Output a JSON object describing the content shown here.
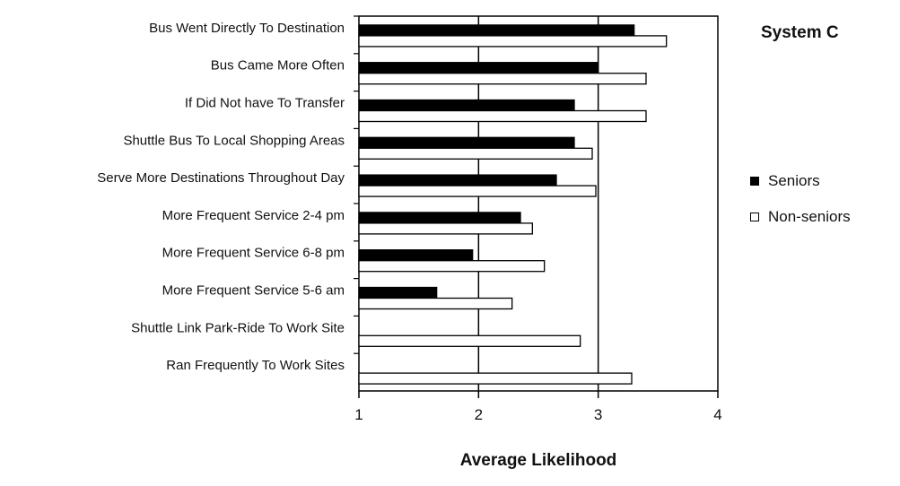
{
  "chart_data": {
    "type": "bar",
    "orientation": "horizontal",
    "title": "System C",
    "xlabel": "Average Likelihood",
    "ylabel": "",
    "xlim": [
      1,
      4
    ],
    "xticks": [
      "1",
      "2",
      "3",
      "4"
    ],
    "grid": "vertical major gridlines",
    "legend_position": "right",
    "categories": [
      "Bus Went Directly To Destination",
      "Bus Came More Often",
      "If Did Not have To Transfer",
      "Shuttle Bus To Local Shopping Areas",
      "Serve More Destinations Throughout Day",
      "More Frequent Service 2-4 pm",
      "More Frequent Service 6-8 pm",
      "More Frequent Service 5-6 am",
      "Shuttle Link Park-Ride To Work Site",
      "Ran Frequently To Work Sites"
    ],
    "series": [
      {
        "name": "Seniors",
        "color": "#000000",
        "values": [
          3.3,
          3.0,
          2.8,
          2.8,
          2.65,
          2.35,
          1.95,
          1.65,
          null,
          null
        ]
      },
      {
        "name": "Non-seniors",
        "color": "#ffffff",
        "values": [
          3.57,
          3.4,
          3.4,
          2.95,
          2.98,
          2.45,
          2.55,
          2.28,
          2.85,
          3.28
        ]
      }
    ]
  }
}
